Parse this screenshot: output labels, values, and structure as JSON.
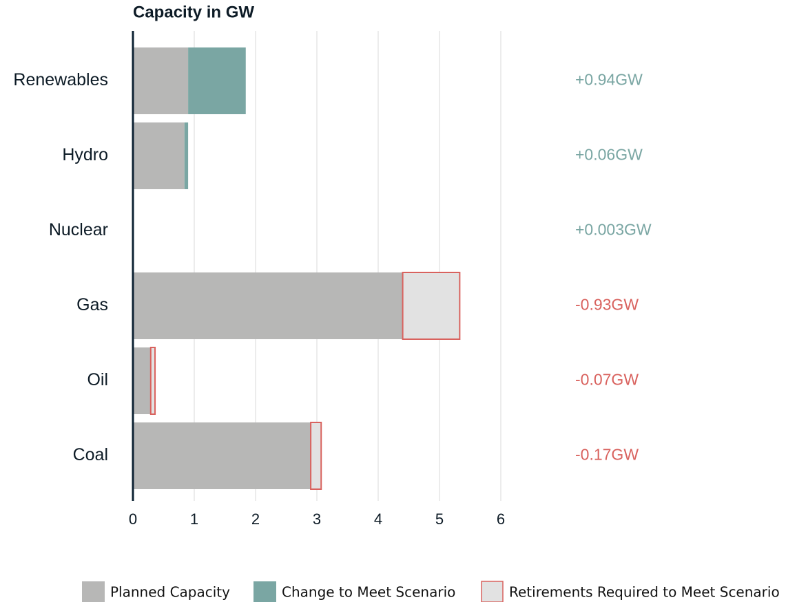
{
  "chart_data": {
    "type": "stacked_barh",
    "title": "Capacity in  GW",
    "categories": [
      "Renewables",
      "Hydro",
      "Nuclear",
      "Gas",
      "Oil",
      "Coal"
    ],
    "series": [
      {
        "name": "Planned Capacity",
        "color": "#b7b7b6",
        "values": [
          0.9,
          0.84,
          0,
          4.4,
          0.29,
          2.9
        ]
      },
      {
        "name": "Change to Meet Scenario",
        "color": "#7aa6a3",
        "values": [
          0.94,
          0.06,
          0.003,
          null,
          null,
          null
        ],
        "value_labels": [
          "+0.94GW",
          "+0.06GW",
          "+0.003GW",
          null,
          null,
          null
        ]
      },
      {
        "name": "Retirements Required to Meet Scenario",
        "color": "#e2e2e2",
        "edge_color": "#d9625e",
        "values": [
          null,
          null,
          null,
          0.93,
          0.07,
          0.17
        ],
        "value_labels": [
          null,
          null,
          null,
          "-0.93GW",
          "-0.07GW",
          "-0.17GW"
        ]
      }
    ],
    "xlim": [
      0,
      6
    ],
    "xticks": [
      0,
      1,
      2,
      3,
      4,
      5,
      6
    ],
    "grid": true
  }
}
